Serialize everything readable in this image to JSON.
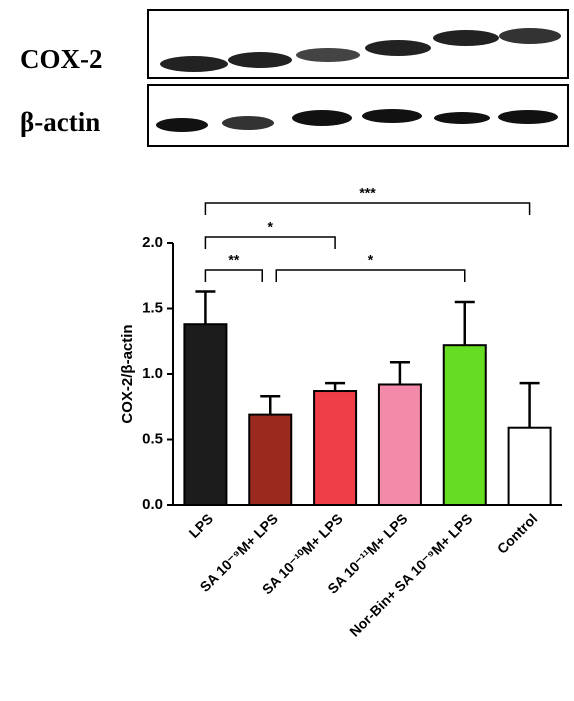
{
  "blot": {
    "labels": [
      "COX-2",
      "β-actin"
    ]
  },
  "chart_data": {
    "type": "bar",
    "ylabel": "COX-2/β-actin",
    "categories": [
      "LPS",
      "SA 10⁻⁹M+ LPS",
      "SA 10⁻¹⁰M+ LPS",
      "SA 10⁻¹¹M+ LPS",
      "Nor-Bin+ SA 10⁻⁹M+ LPS",
      "Control"
    ],
    "values": [
      1.38,
      0.69,
      0.87,
      0.92,
      1.22,
      0.59
    ],
    "errors": [
      0.25,
      0.14,
      0.06,
      0.17,
      0.33,
      0.34
    ],
    "colors": [
      "#1c1c1c",
      "#9b2a1e",
      "#ef3e48",
      "#f48aa9",
      "#66dd22",
      "#ffffff"
    ],
    "ylim": [
      0,
      2.0
    ],
    "yticks": [
      {
        "value": 0,
        "label": "0.0"
      },
      {
        "value": 0.5,
        "label": "0.5"
      },
      {
        "value": 1,
        "label": "1.0"
      },
      {
        "value": 1.5,
        "label": "1.5"
      },
      {
        "value": 2,
        "label": "2.0"
      }
    ],
    "annotations": [
      "***",
      "*",
      "**",
      "*"
    ]
  }
}
